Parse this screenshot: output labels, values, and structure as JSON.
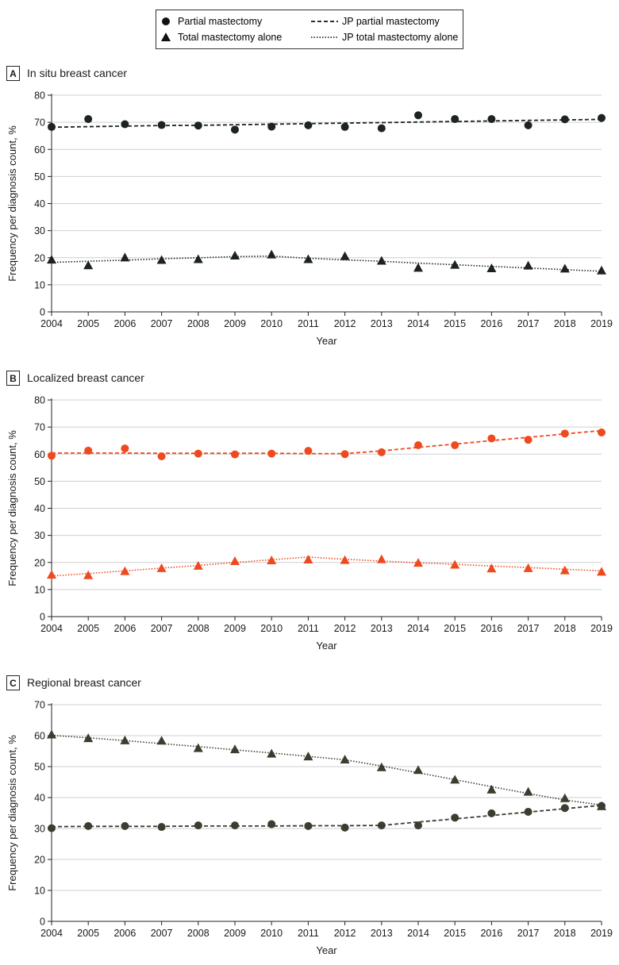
{
  "legend": {
    "items": [
      {
        "label": "Partial mastectomy",
        "kind": "marker-circle"
      },
      {
        "label": "JP partial mastectomy",
        "kind": "line-dashed"
      },
      {
        "label": "Total mastectomy alone",
        "kind": "marker-triangle"
      },
      {
        "label": "JP total mastectomy alone",
        "kind": "line-dotted"
      }
    ]
  },
  "chart_data": [
    {
      "type": "scatter",
      "panel_letter": "A",
      "title": "In situ breast cancer",
      "xlabel": "Year",
      "ylabel": "Frequency per diagnosis count, %",
      "x": [
        2004,
        2005,
        2006,
        2007,
        2008,
        2009,
        2010,
        2011,
        2012,
        2013,
        2014,
        2015,
        2016,
        2017,
        2018,
        2019
      ],
      "ylim": [
        0,
        80
      ],
      "yticks": [
        0,
        10,
        20,
        30,
        40,
        50,
        60,
        70,
        80
      ],
      "grid": true,
      "color": "#1c2320",
      "series": [
        {
          "name": "Partial mastectomy",
          "marker": "circle",
          "values": [
            68.3,
            71.2,
            69.3,
            69.0,
            68.8,
            67.3,
            68.4,
            68.9,
            68.3,
            67.8,
            72.6,
            71.2,
            71.2,
            68.9,
            71.1,
            71.6
          ]
        },
        {
          "name": "JP partial mastectomy",
          "line": "dashed",
          "values": [
            68.2,
            68.4,
            68.6,
            68.8,
            68.9,
            69.1,
            69.3,
            69.5,
            69.7,
            69.9,
            70.1,
            70.3,
            70.5,
            70.7,
            70.9,
            71.1
          ]
        },
        {
          "name": "Total mastectomy alone",
          "marker": "triangle",
          "values": [
            19.3,
            17.2,
            20.1,
            19.2,
            19.5,
            20.8,
            21.2,
            19.5,
            20.6,
            18.9,
            16.3,
            17.4,
            16.1,
            17.1,
            16.0,
            15.3
          ]
        },
        {
          "name": "JP total mastectomy alone",
          "line": "dotted",
          "values": [
            18.3,
            18.7,
            19.1,
            19.6,
            20.0,
            20.4,
            20.6,
            19.8,
            19.2,
            18.7,
            18.0,
            17.4,
            16.8,
            16.2,
            15.6,
            15.0
          ]
        }
      ]
    },
    {
      "type": "scatter",
      "panel_letter": "B",
      "title": "Localized breast cancer",
      "xlabel": "Year",
      "ylabel": "Frequency per diagnosis count, %",
      "x": [
        2004,
        2005,
        2006,
        2007,
        2008,
        2009,
        2010,
        2011,
        2012,
        2013,
        2014,
        2015,
        2016,
        2017,
        2018,
        2019
      ],
      "ylim": [
        0,
        80
      ],
      "yticks": [
        0,
        10,
        20,
        30,
        40,
        50,
        60,
        70,
        80
      ],
      "grid": true,
      "color": "#ee4a1f",
      "series": [
        {
          "name": "Partial mastectomy",
          "marker": "circle",
          "values": [
            59.4,
            61.3,
            62.1,
            59.2,
            60.2,
            59.9,
            60.2,
            61.2,
            60.0,
            60.7,
            63.3,
            63.3,
            65.8,
            65.3,
            67.6,
            68.0
          ]
        },
        {
          "name": "JP partial mastectomy",
          "line": "dashed",
          "values": [
            60.4,
            60.4,
            60.4,
            60.3,
            60.3,
            60.3,
            60.3,
            60.2,
            60.2,
            61.2,
            62.5,
            63.7,
            65.0,
            66.2,
            67.5,
            68.7
          ]
        },
        {
          "name": "Total mastectomy alone",
          "marker": "triangle",
          "values": [
            15.5,
            15.3,
            16.8,
            17.9,
            18.8,
            20.5,
            20.8,
            21.1,
            20.9,
            21.2,
            19.9,
            19.2,
            17.8,
            17.9,
            17.1,
            16.6
          ]
        },
        {
          "name": "JP total mastectomy alone",
          "line": "dotted",
          "values": [
            15.0,
            15.9,
            16.9,
            17.9,
            18.9,
            20.0,
            21.0,
            22.0,
            21.2,
            20.5,
            19.9,
            19.3,
            18.7,
            18.1,
            17.5,
            16.9
          ]
        }
      ]
    },
    {
      "type": "scatter",
      "panel_letter": "C",
      "title": "Regional breast cancer",
      "xlabel": "Year",
      "ylabel": "Frequency per diagnosis count, %",
      "x": [
        2004,
        2005,
        2006,
        2007,
        2008,
        2009,
        2010,
        2011,
        2012,
        2013,
        2014,
        2015,
        2016,
        2017,
        2018,
        2019
      ],
      "ylim": [
        0,
        70
      ],
      "yticks": [
        0,
        10,
        20,
        30,
        40,
        50,
        60,
        70
      ],
      "grid": true,
      "color": "#3a3d30",
      "series": [
        {
          "name": "Partial mastectomy",
          "marker": "circle",
          "values": [
            30.1,
            30.8,
            30.8,
            30.5,
            31.0,
            31.0,
            31.4,
            30.8,
            30.3,
            31.0,
            31.0,
            33.5,
            34.9,
            35.4,
            36.6,
            37.3
          ]
        },
        {
          "name": "JP partial mastectomy",
          "line": "dashed",
          "values": [
            30.6,
            30.7,
            30.7,
            30.7,
            30.8,
            30.8,
            30.8,
            30.9,
            30.9,
            31.0,
            32.1,
            33.1,
            34.2,
            35.3,
            36.4,
            37.5
          ]
        },
        {
          "name": "Total mastectomy alone",
          "marker": "triangle",
          "values": [
            60.4,
            59.2,
            58.5,
            58.4,
            56.0,
            55.6,
            54.2,
            53.3,
            52.3,
            49.8,
            48.9,
            45.8,
            42.6,
            41.9,
            39.8,
            37.2
          ]
        },
        {
          "name": "JP total mastectomy alone",
          "line": "dotted",
          "values": [
            60.1,
            59.3,
            58.4,
            57.4,
            56.5,
            55.4,
            54.4,
            53.3,
            52.2,
            50.2,
            48.0,
            45.8,
            43.5,
            41.3,
            39.2,
            37.6
          ]
        }
      ]
    }
  ]
}
